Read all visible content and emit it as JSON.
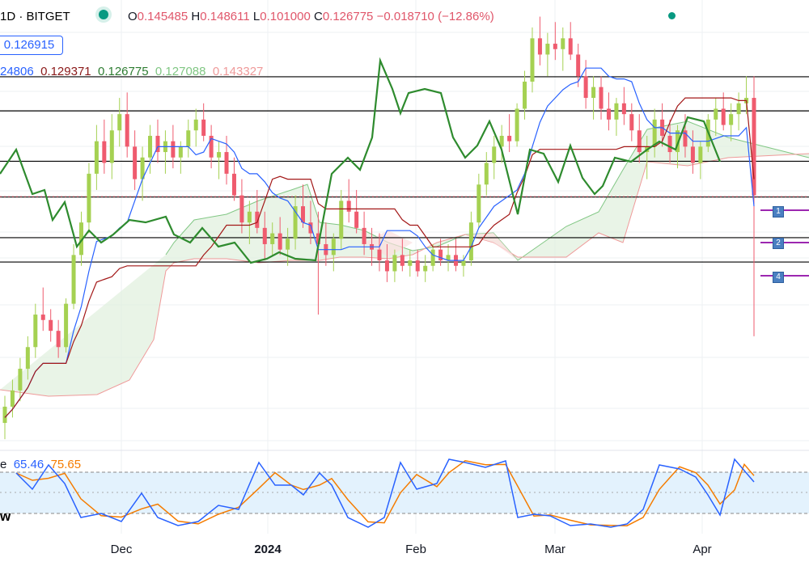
{
  "header": {
    "symbol": "1D · BITGET",
    "o_label": "O",
    "o_value": "0.145485",
    "h_label": "H",
    "h_value": "0.148611",
    "l_label": "L",
    "l_value": "0.101000",
    "c_label": "C",
    "c_value": "0.126775",
    "change": "−0.018710 (−12.86%)"
  },
  "price_box": "0.126915",
  "indicators": [
    {
      "text": "24806",
      "color": "#2962ff"
    },
    {
      "text": "0.129371",
      "color": "#8b1a1a"
    },
    {
      "text": "0.126775",
      "color": "#2e7d32"
    },
    {
      "text": "0.127088",
      "color": "#81c784"
    },
    {
      "text": "0.143327",
      "color": "#ef9a9a"
    }
  ],
  "stoch": {
    "label_fragment": "e",
    "k_value": "65.46",
    "k_color": "#2962ff",
    "d_value": "75.65",
    "d_color": "#f57c00",
    "corner_label": "w"
  },
  "x_axis_labels": [
    "Dec",
    "2024",
    "Feb",
    "Mar",
    "Apr"
  ],
  "level_tags": [
    "1",
    "2",
    "4"
  ],
  "colors": {
    "up": "#a5d152",
    "down": "#ef5b6e",
    "tenkan": "#2962ff",
    "kijun": "#a31818",
    "lagging": "#2e8b2e",
    "span_a": "#81c784",
    "span_b": "#ef9a9a",
    "h_line": "#000000",
    "purple": "#9c27b0",
    "band": "#e3f2fd"
  },
  "chart_data": {
    "type": "candlestick",
    "indicator_overlays": [
      "ichimoku",
      "horizontal-levels"
    ],
    "x": [
      "Dec",
      "2024",
      "Feb",
      "Mar",
      "Apr"
    ],
    "last_close": 0.126775,
    "horizontal_levels": [
      0.1489,
      0.1426,
      0.1333,
      0.1267,
      0.1192,
      0.1147
    ],
    "candles": [
      [
        0.085,
        0.09,
        0.082,
        0.088
      ],
      [
        0.088,
        0.093,
        0.086,
        0.091
      ],
      [
        0.091,
        0.097,
        0.089,
        0.095
      ],
      [
        0.095,
        0.101,
        0.093,
        0.099
      ],
      [
        0.099,
        0.107,
        0.097,
        0.105
      ],
      [
        0.105,
        0.11,
        0.102,
        0.104
      ],
      [
        0.104,
        0.106,
        0.1,
        0.102
      ],
      [
        0.102,
        0.104,
        0.097,
        0.099
      ],
      [
        0.099,
        0.108,
        0.098,
        0.107
      ],
      [
        0.107,
        0.118,
        0.106,
        0.116
      ],
      [
        0.116,
        0.124,
        0.114,
        0.122
      ],
      [
        0.122,
        0.133,
        0.12,
        0.131
      ],
      [
        0.131,
        0.14,
        0.128,
        0.137
      ],
      [
        0.137,
        0.141,
        0.131,
        0.133
      ],
      [
        0.133,
        0.142,
        0.13,
        0.139
      ],
      [
        0.139,
        0.145,
        0.136,
        0.142
      ],
      [
        0.142,
        0.146,
        0.134,
        0.136
      ],
      [
        0.136,
        0.139,
        0.128,
        0.13
      ],
      [
        0.13,
        0.136,
        0.126,
        0.134
      ],
      [
        0.134,
        0.14,
        0.131,
        0.138
      ],
      [
        0.138,
        0.141,
        0.133,
        0.135
      ],
      [
        0.135,
        0.139,
        0.131,
        0.137
      ],
      [
        0.137,
        0.14,
        0.132,
        0.134
      ],
      [
        0.134,
        0.137,
        0.131,
        0.136
      ],
      [
        0.136,
        0.141,
        0.134,
        0.139
      ],
      [
        0.139,
        0.143,
        0.136,
        0.141
      ],
      [
        0.141,
        0.144,
        0.137,
        0.138
      ],
      [
        0.138,
        0.14,
        0.132,
        0.134
      ],
      [
        0.134,
        0.137,
        0.13,
        0.135
      ],
      [
        0.135,
        0.138,
        0.129,
        0.131
      ],
      [
        0.131,
        0.134,
        0.126,
        0.127
      ],
      [
        0.127,
        0.13,
        0.12,
        0.122
      ],
      [
        0.122,
        0.126,
        0.118,
        0.124
      ],
      [
        0.124,
        0.128,
        0.12,
        0.121
      ],
      [
        0.121,
        0.124,
        0.115,
        0.118
      ],
      [
        0.118,
        0.122,
        0.116,
        0.12
      ],
      [
        0.12,
        0.123,
        0.116,
        0.117
      ],
      [
        0.117,
        0.121,
        0.114,
        0.119
      ],
      [
        0.119,
        0.127,
        0.117,
        0.125
      ],
      [
        0.125,
        0.129,
        0.121,
        0.122
      ],
      [
        0.122,
        0.126,
        0.118,
        0.12
      ],
      [
        0.12,
        0.124,
        0.105,
        0.118
      ],
      [
        0.118,
        0.122,
        0.114,
        0.116
      ],
      [
        0.116,
        0.12,
        0.113,
        0.119
      ],
      [
        0.119,
        0.128,
        0.117,
        0.126
      ],
      [
        0.126,
        0.13,
        0.122,
        0.124
      ],
      [
        0.124,
        0.128,
        0.12,
        0.121
      ],
      [
        0.121,
        0.124,
        0.116,
        0.118
      ],
      [
        0.118,
        0.121,
        0.114,
        0.117
      ],
      [
        0.117,
        0.12,
        0.113,
        0.115
      ],
      [
        0.115,
        0.118,
        0.111,
        0.113
      ],
      [
        0.113,
        0.117,
        0.111,
        0.116
      ],
      [
        0.116,
        0.119,
        0.113,
        0.114
      ],
      [
        0.114,
        0.117,
        0.112,
        0.115
      ],
      [
        0.115,
        0.117,
        0.112,
        0.113
      ],
      [
        0.113,
        0.116,
        0.111,
        0.114
      ],
      [
        0.114,
        0.118,
        0.113,
        0.117
      ],
      [
        0.117,
        0.119,
        0.114,
        0.115
      ],
      [
        0.115,
        0.118,
        0.113,
        0.116
      ],
      [
        0.116,
        0.119,
        0.113,
        0.114
      ],
      [
        0.114,
        0.116,
        0.112,
        0.115
      ],
      [
        0.115,
        0.124,
        0.114,
        0.122
      ],
      [
        0.122,
        0.131,
        0.121,
        0.129
      ],
      [
        0.129,
        0.135,
        0.127,
        0.133
      ],
      [
        0.133,
        0.138,
        0.13,
        0.136
      ],
      [
        0.136,
        0.14,
        0.133,
        0.138
      ],
      [
        0.138,
        0.142,
        0.135,
        0.137
      ],
      [
        0.137,
        0.144,
        0.136,
        0.143
      ],
      [
        0.143,
        0.15,
        0.141,
        0.148
      ],
      [
        0.148,
        0.158,
        0.146,
        0.156
      ],
      [
        0.156,
        0.16,
        0.151,
        0.153
      ],
      [
        0.153,
        0.157,
        0.149,
        0.155
      ],
      [
        0.155,
        0.159,
        0.152,
        0.154
      ],
      [
        0.154,
        0.158,
        0.15,
        0.156
      ],
      [
        0.156,
        0.159,
        0.152,
        0.153
      ],
      [
        0.153,
        0.155,
        0.147,
        0.149
      ],
      [
        0.149,
        0.152,
        0.143,
        0.145
      ],
      [
        0.145,
        0.149,
        0.141,
        0.147
      ],
      [
        0.147,
        0.149,
        0.141,
        0.143
      ],
      [
        0.143,
        0.146,
        0.139,
        0.141
      ],
      [
        0.141,
        0.145,
        0.138,
        0.144
      ],
      [
        0.144,
        0.147,
        0.14,
        0.142
      ],
      [
        0.142,
        0.144,
        0.137,
        0.139
      ],
      [
        0.139,
        0.142,
        0.133,
        0.135
      ],
      [
        0.135,
        0.138,
        0.13,
        0.136
      ],
      [
        0.136,
        0.143,
        0.134,
        0.141
      ],
      [
        0.141,
        0.144,
        0.136,
        0.138
      ],
      [
        0.138,
        0.141,
        0.133,
        0.135
      ],
      [
        0.135,
        0.14,
        0.132,
        0.139
      ],
      [
        0.139,
        0.142,
        0.134,
        0.136
      ],
      [
        0.136,
        0.139,
        0.131,
        0.133
      ],
      [
        0.133,
        0.137,
        0.13,
        0.136
      ],
      [
        0.136,
        0.142,
        0.135,
        0.141
      ],
      [
        0.141,
        0.145,
        0.138,
        0.143
      ],
      [
        0.143,
        0.146,
        0.139,
        0.14
      ],
      [
        0.14,
        0.144,
        0.137,
        0.142
      ],
      [
        0.142,
        0.146,
        0.139,
        0.144
      ],
      [
        0.144,
        0.149,
        0.142,
        0.145
      ],
      [
        0.145,
        0.149,
        0.101,
        0.127
      ]
    ]
  }
}
